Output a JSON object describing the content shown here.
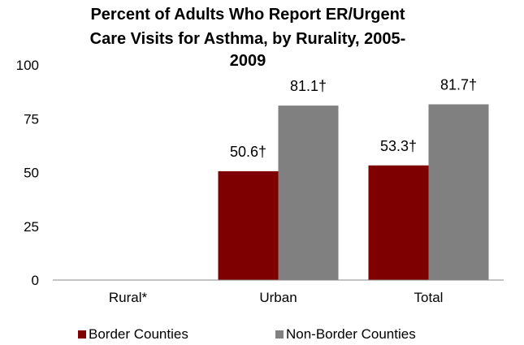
{
  "chart_data": {
    "type": "bar",
    "title_lines": [
      "Percent of  Adults Who Report ER/Urgent",
      "Care Visits for Asthma, by Rurality, 2005-",
      "2009"
    ],
    "categories": [
      "Rural*",
      "Urban",
      "Total"
    ],
    "series": [
      {
        "name": "Border Counties",
        "color": "#7f0000",
        "values": [
          null,
          50.6,
          53.3
        ],
        "labels": [
          null,
          "50.6†",
          "53.3†"
        ]
      },
      {
        "name": "Non-Border Counties",
        "color": "#808080",
        "values": [
          null,
          81.1,
          81.7
        ],
        "labels": [
          null,
          "81.1†",
          "81.7†"
        ]
      }
    ],
    "y_ticks": [
      "0",
      "25",
      "50",
      "75",
      "100"
    ],
    "ylim": [
      0,
      100
    ],
    "grid": false,
    "legend_position": "bottom"
  }
}
